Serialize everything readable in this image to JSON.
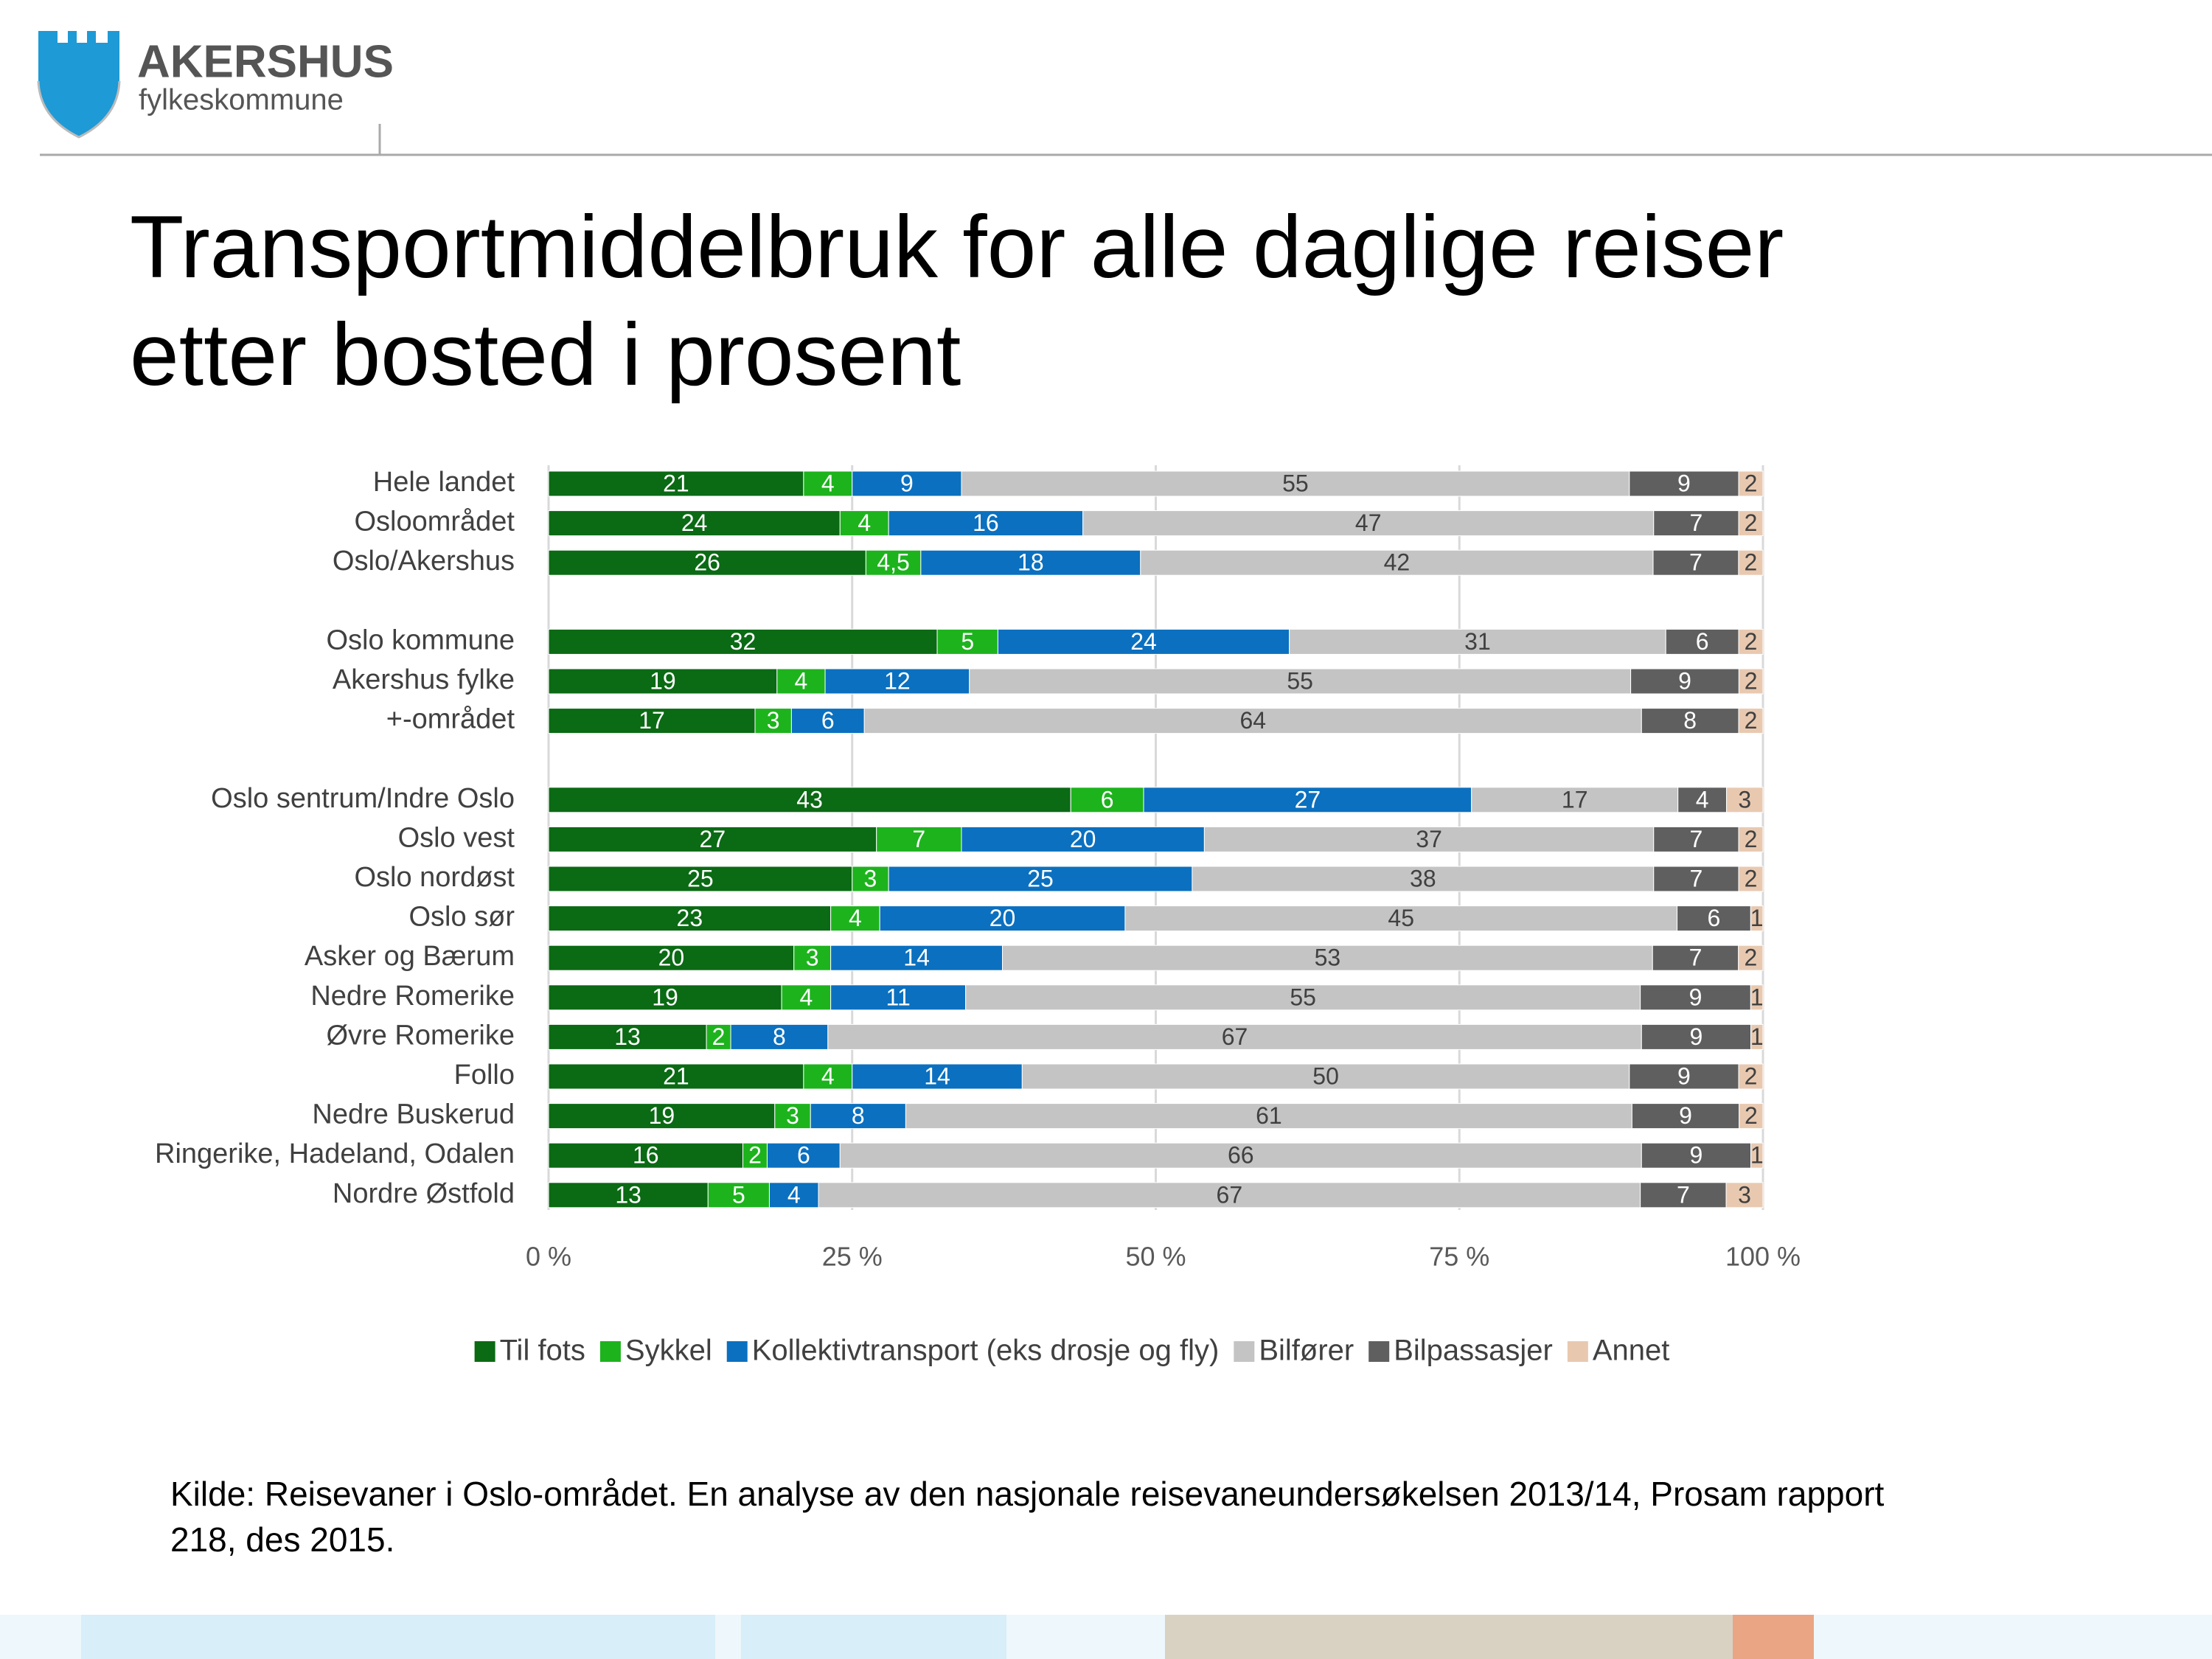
{
  "header": {
    "logo_name": "AKERSHUS",
    "logo_sub": "fylkeskommune"
  },
  "chart_data": {
    "type": "stacked-bar-horizontal",
    "stacking": "percent",
    "title": "Transportmiddelbruk for alle daglige reiser etter bosted i prosent",
    "categories": [
      "Hele landet",
      "Osloområdet",
      "Oslo/Akershus",
      null,
      "Oslo kommune",
      "Akershus fylke",
      "+-området",
      null,
      "Oslo sentrum/Indre Oslo",
      "Oslo vest",
      "Oslo nordøst",
      "Oslo sør",
      "Asker og Bærum",
      "Nedre Romerike",
      "Øvre Romerike",
      "Follo",
      "Nedre Buskerud",
      "Ringerike, Hadeland, Odalen",
      "Nordre Østfold"
    ],
    "series": [
      {
        "name": "Til fots",
        "color": "#0b6a14",
        "values": [
          21,
          24,
          26,
          null,
          32,
          19,
          17,
          null,
          43,
          27,
          25,
          23,
          20,
          19,
          13,
          21,
          19,
          16,
          13
        ]
      },
      {
        "name": "Sykkel",
        "color": "#1db31d",
        "values": [
          4,
          4,
          4.5,
          null,
          5,
          4,
          3,
          null,
          6,
          7,
          3,
          4,
          3,
          4,
          2,
          4,
          3,
          2,
          5
        ],
        "value_labels": [
          "4",
          "4",
          "4,5",
          null,
          "5",
          "4",
          "3",
          null,
          "6",
          "7",
          "3",
          "4",
          "3",
          "4",
          "2",
          "4",
          "3",
          "2",
          "5"
        ]
      },
      {
        "name": "Kollektivtransport (eks drosje og fly)",
        "color": "#0b70bf",
        "values": [
          9,
          16,
          18,
          null,
          24,
          12,
          6,
          null,
          27,
          20,
          25,
          20,
          14,
          11,
          8,
          14,
          8,
          6,
          4
        ]
      },
      {
        "name": "Bilfører",
        "color": "#c4c4c4",
        "values": [
          55,
          47,
          42,
          null,
          31,
          55,
          64,
          null,
          17,
          37,
          38,
          45,
          53,
          55,
          67,
          50,
          61,
          66,
          67
        ]
      },
      {
        "name": "Bilpassasjer",
        "color": "#5f5f5f",
        "values": [
          9,
          7,
          7,
          null,
          6,
          9,
          8,
          null,
          4,
          7,
          7,
          6,
          7,
          9,
          9,
          9,
          9,
          9,
          7
        ]
      },
      {
        "name": "Annet",
        "color": "#e8c9b0",
        "values": [
          2,
          2,
          2,
          null,
          2,
          2,
          2,
          null,
          3,
          2,
          2,
          1,
          2,
          1,
          1,
          2,
          2,
          1,
          3
        ]
      }
    ],
    "xlim": [
      0,
      100
    ],
    "xticks": [
      {
        "value": 0,
        "label": "0 %"
      },
      {
        "value": 25,
        "label": "25 %"
      },
      {
        "value": 50,
        "label": "50 %"
      },
      {
        "value": 75,
        "label": "75 %"
      },
      {
        "value": 100,
        "label": "100 %"
      }
    ],
    "grid": true,
    "legend": "bottom",
    "source": "Kilde: Reisevaner i Oslo-området. En analyse av den nasjonale reisevaneundersøkelsen 2013/14, Prosam rapport 218, des 2015."
  }
}
